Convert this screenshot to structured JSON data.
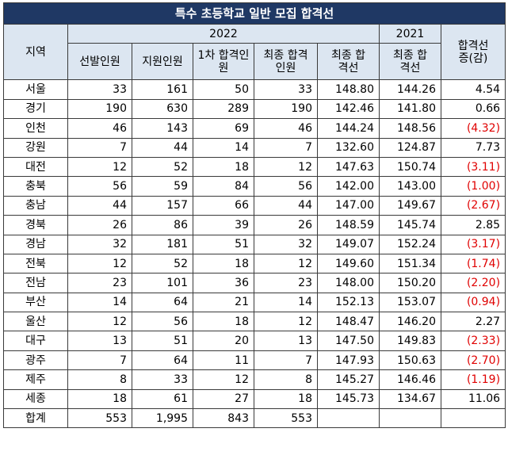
{
  "title": "특수 초등학교 일반 모집 합격선",
  "headers": {
    "region": "지역",
    "year_2022": "2022",
    "year_2021": "2021",
    "change": "합격선 증(감)",
    "cols_2022": [
      "선발인원",
      "지원인원",
      "1차 합격인원",
      "최종 합격인원",
      "최종 합격선"
    ],
    "col_2021": "최종 합격선"
  },
  "rows": [
    {
      "region": "서울",
      "sel": "33",
      "app": "161",
      "first": "50",
      "final": "33",
      "cut22": "148.80",
      "cut21": "144.26",
      "diff": "4.54",
      "neg": false
    },
    {
      "region": "경기",
      "sel": "190",
      "app": "630",
      "first": "289",
      "final": "190",
      "cut22": "142.46",
      "cut21": "141.80",
      "diff": "0.66",
      "neg": false
    },
    {
      "region": "인천",
      "sel": "46",
      "app": "143",
      "first": "69",
      "final": "46",
      "cut22": "144.24",
      "cut21": "148.56",
      "diff": "(4.32)",
      "neg": true
    },
    {
      "region": "강원",
      "sel": "7",
      "app": "44",
      "first": "14",
      "final": "7",
      "cut22": "132.60",
      "cut21": "124.87",
      "diff": "7.73",
      "neg": false
    },
    {
      "region": "대전",
      "sel": "12",
      "app": "52",
      "first": "18",
      "final": "12",
      "cut22": "147.63",
      "cut21": "150.74",
      "diff": "(3.11)",
      "neg": true
    },
    {
      "region": "충북",
      "sel": "56",
      "app": "59",
      "first": "84",
      "final": "56",
      "cut22": "142.00",
      "cut21": "143.00",
      "diff": "(1.00)",
      "neg": true
    },
    {
      "region": "충남",
      "sel": "44",
      "app": "157",
      "first": "66",
      "final": "44",
      "cut22": "147.00",
      "cut21": "149.67",
      "diff": "(2.67)",
      "neg": true
    },
    {
      "region": "경북",
      "sel": "26",
      "app": "86",
      "first": "39",
      "final": "26",
      "cut22": "148.59",
      "cut21": "145.74",
      "diff": "2.85",
      "neg": false
    },
    {
      "region": "경남",
      "sel": "32",
      "app": "181",
      "first": "51",
      "final": "32",
      "cut22": "149.07",
      "cut21": "152.24",
      "diff": "(3.17)",
      "neg": true
    },
    {
      "region": "전북",
      "sel": "12",
      "app": "52",
      "first": "18",
      "final": "12",
      "cut22": "149.60",
      "cut21": "151.34",
      "diff": "(1.74)",
      "neg": true
    },
    {
      "region": "전남",
      "sel": "23",
      "app": "101",
      "first": "36",
      "final": "23",
      "cut22": "148.00",
      "cut21": "150.20",
      "diff": "(2.20)",
      "neg": true
    },
    {
      "region": "부산",
      "sel": "14",
      "app": "64",
      "first": "21",
      "final": "14",
      "cut22": "152.13",
      "cut21": "153.07",
      "diff": "(0.94)",
      "neg": true
    },
    {
      "region": "울산",
      "sel": "12",
      "app": "56",
      "first": "18",
      "final": "12",
      "cut22": "148.47",
      "cut21": "146.20",
      "diff": "2.27",
      "neg": false
    },
    {
      "region": "대구",
      "sel": "13",
      "app": "51",
      "first": "20",
      "final": "13",
      "cut22": "147.50",
      "cut21": "149.83",
      "diff": "(2.33)",
      "neg": true
    },
    {
      "region": "광주",
      "sel": "7",
      "app": "64",
      "first": "11",
      "final": "7",
      "cut22": "147.93",
      "cut21": "150.63",
      "diff": "(2.70)",
      "neg": true
    },
    {
      "region": "제주",
      "sel": "8",
      "app": "33",
      "first": "12",
      "final": "8",
      "cut22": "145.27",
      "cut21": "146.46",
      "diff": "(1.19)",
      "neg": true
    },
    {
      "region": "세종",
      "sel": "18",
      "app": "61",
      "first": "27",
      "final": "18",
      "cut22": "145.73",
      "cut21": "134.67",
      "diff": "11.06",
      "neg": false
    }
  ],
  "total": {
    "region": "합계",
    "sel": "553",
    "app": "1,995",
    "first": "843",
    "final": "553",
    "cut22": "",
    "cut21": "",
    "diff": ""
  },
  "colors": {
    "title_bg": "#1f3864",
    "header_bg": "#dce6f1",
    "negative": "#e00000"
  }
}
